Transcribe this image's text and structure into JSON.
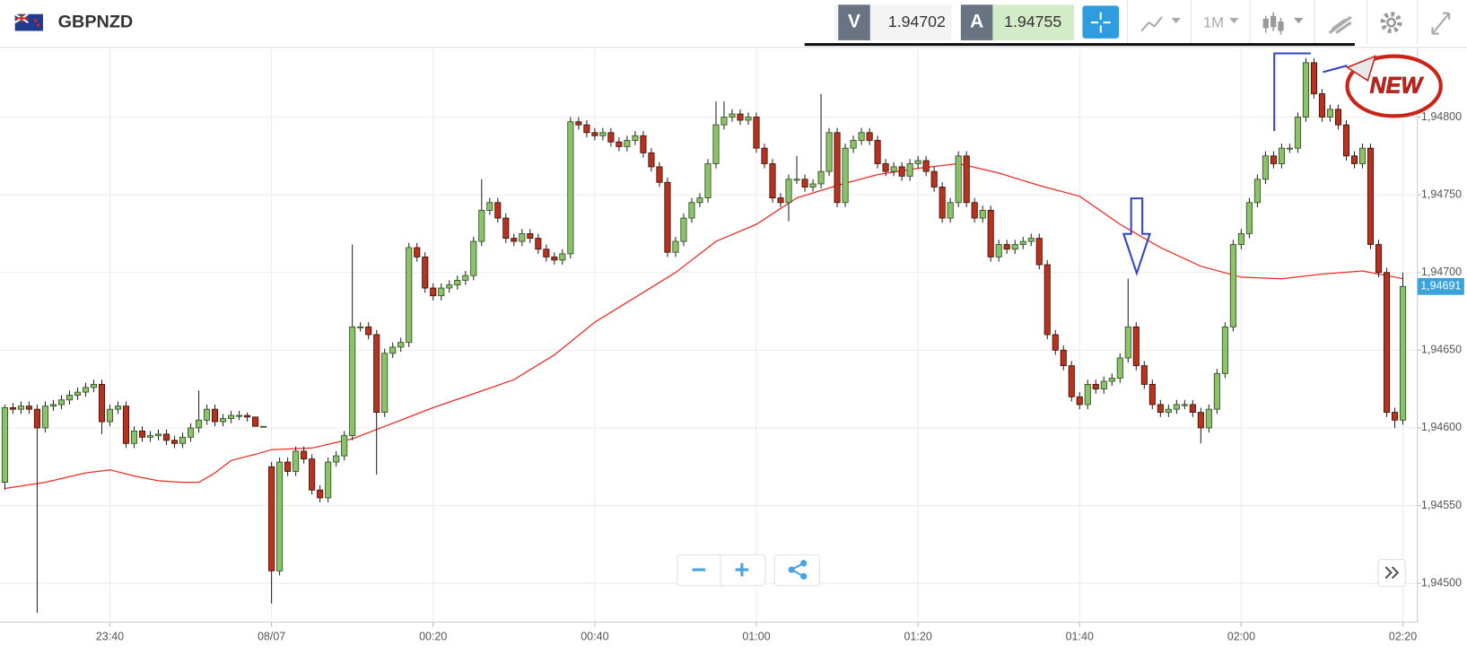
{
  "header": {
    "symbol": "GBPNZD",
    "bid_label": "V",
    "bid": 1.94702,
    "ask_label": "A",
    "ask": 1.94755,
    "timeframe": "1M"
  },
  "chart_data": {
    "type": "candlestick",
    "badge": "NEW",
    "up_color": "#8cc36a",
    "down_color": "#b8321e",
    "xlim": [
      -33.6,
      141.8
    ],
    "ylim": [
      1.94475,
      1.94844
    ],
    "xticks": [
      {
        "value": -20,
        "label": "23:40"
      },
      {
        "value": 0,
        "label": "08/07"
      },
      {
        "value": 20,
        "label": "00:20"
      },
      {
        "value": 40,
        "label": "00:40"
      },
      {
        "value": 60,
        "label": "01:00"
      },
      {
        "value": 80,
        "label": "01:20"
      },
      {
        "value": 100,
        "label": "01:40"
      },
      {
        "value": 120,
        "label": "02:00"
      },
      {
        "value": 140,
        "label": "02:20"
      }
    ],
    "yticks": [
      {
        "value": 1.945,
        "label": "1,94500"
      },
      {
        "value": 1.9455,
        "label": "1,94550"
      },
      {
        "value": 1.946,
        "label": "1,94600"
      },
      {
        "value": 1.9465,
        "label": "1,94650"
      },
      {
        "value": 1.947,
        "label": "1,94700"
      },
      {
        "value": 1.9475,
        "label": "1,94750"
      },
      {
        "value": 1.948,
        "label": "1,94800"
      }
    ],
    "grid": true,
    "last_price": {
      "value": 1.94691,
      "label": "1,94691"
    },
    "x": [
      -33,
      -32,
      -31,
      -30,
      -29,
      -28,
      -27,
      -26,
      -25,
      -24,
      -23,
      -22,
      -21,
      -20,
      -19,
      -18,
      -17,
      -16,
      -15,
      -14,
      -13,
      -12,
      -11,
      -10,
      -9,
      -8,
      -7,
      -6,
      -5,
      -4,
      -3,
      -2,
      -1,
      0,
      1,
      2,
      3,
      4,
      5,
      6,
      7,
      8,
      9,
      10,
      11,
      12,
      13,
      14,
      15,
      16,
      17,
      18,
      19,
      20,
      21,
      22,
      23,
      24,
      25,
      26,
      27,
      28,
      29,
      30,
      31,
      32,
      33,
      34,
      35,
      36,
      37,
      38,
      39,
      40,
      41,
      42,
      43,
      44,
      45,
      46,
      47,
      48,
      49,
      50,
      51,
      52,
      53,
      54,
      55,
      56,
      57,
      58,
      59,
      60,
      61,
      62,
      63,
      64,
      65,
      66,
      67,
      68,
      69,
      70,
      71,
      72,
      73,
      74,
      75,
      76,
      77,
      78,
      79,
      80,
      81,
      82,
      83,
      84,
      85,
      86,
      87,
      88,
      89,
      90,
      91,
      92,
      93,
      94,
      95,
      96,
      97,
      98,
      99,
      100,
      101,
      102,
      103,
      104,
      105,
      106,
      107,
      108,
      109,
      110,
      111,
      112,
      113,
      114,
      115,
      116,
      117,
      118,
      119,
      120,
      121,
      122,
      123,
      124,
      125,
      126,
      127,
      128,
      129,
      130,
      131,
      132,
      133,
      134,
      135,
      136,
      137,
      138,
      139,
      140
    ],
    "open": [
      1.94565,
      1.94613,
      1.94612,
      1.94614,
      1.94612,
      1.946,
      1.94614,
      1.94615,
      1.94618,
      1.94621,
      1.94623,
      1.94626,
      1.94628,
      1.94604,
      1.94612,
      1.94614,
      1.9459,
      1.94598,
      1.94594,
      1.94595,
      1.94596,
      1.94592,
      1.9459,
      1.94594,
      1.946,
      1.94605,
      1.94612,
      1.94604,
      1.94606,
      1.94608,
      1.94608,
      1.94607,
      1.94601,
      1.94575,
      1.94508,
      1.94578,
      1.94572,
      1.94585,
      1.9458,
      1.9456,
      1.94555,
      1.94578,
      1.94582,
      1.94595,
      1.94665,
      1.94665,
      1.9466,
      1.9461,
      1.94648,
      1.94652,
      1.94655,
      1.94716,
      1.9471,
      1.9469,
      1.94685,
      1.9469,
      1.94692,
      1.94695,
      1.94698,
      1.9472,
      1.9474,
      1.94745,
      1.94735,
      1.94722,
      1.9472,
      1.94725,
      1.94722,
      1.94715,
      1.9471,
      1.94708,
      1.94712,
      1.94797,
      1.94795,
      1.9479,
      1.94788,
      1.9479,
      1.94784,
      1.94781,
      1.94785,
      1.94788,
      1.94777,
      1.94768,
      1.94758,
      1.94713,
      1.9472,
      1.94735,
      1.94745,
      1.94748,
      1.9477,
      1.94795,
      1.948,
      1.94802,
      1.94798,
      1.948,
      1.9478,
      1.9477,
      1.94748,
      1.94745,
      1.9476,
      1.9476,
      1.94755,
      1.94757,
      1.94765,
      1.9479,
      1.94745,
      1.9478,
      1.94785,
      1.9479,
      1.94785,
      1.9477,
      1.94765,
      1.94768,
      1.94762,
      1.9477,
      1.94772,
      1.94765,
      1.94755,
      1.94735,
      1.94745,
      1.94775,
      1.94745,
      1.94735,
      1.9474,
      1.9471,
      1.94718,
      1.94715,
      1.94718,
      1.9472,
      1.94722,
      1.94705,
      1.9466,
      1.9465,
      1.9464,
      1.9462,
      1.94615,
      1.94628,
      1.94625,
      1.9463,
      1.94632,
      1.94645,
      1.94665,
      1.9464,
      1.94628,
      1.94615,
      1.9461,
      1.94612,
      1.94615,
      1.94615,
      1.9461,
      1.946,
      1.94612,
      1.94635,
      1.94665,
      1.94718,
      1.94725,
      1.94745,
      1.9476,
      1.94775,
      1.9477,
      1.9478,
      1.9478,
      1.948,
      1.94835,
      1.94815,
      1.948,
      1.94805,
      1.94795,
      1.94775,
      1.9477,
      1.9478,
      1.94718,
      1.947,
      1.9461,
      1.94605
    ],
    "high": [
      1.94615,
      1.94616,
      1.94617,
      1.94617,
      1.94615,
      1.94617,
      1.94618,
      1.94621,
      1.94624,
      1.94626,
      1.94629,
      1.94631,
      1.94631,
      1.94615,
      1.94617,
      1.94617,
      1.94601,
      1.94601,
      1.94598,
      1.94599,
      1.94599,
      1.94595,
      1.94597,
      1.94603,
      1.94624,
      1.94615,
      1.94615,
      1.94609,
      1.94611,
      1.94611,
      1.9461,
      1.94607,
      1.94601,
      1.94578,
      1.94581,
      1.94581,
      1.94588,
      1.94588,
      1.94583,
      1.94563,
      1.94581,
      1.94585,
      1.94598,
      1.94718,
      1.94668,
      1.94668,
      1.94663,
      1.94651,
      1.94655,
      1.94658,
      1.94719,
      1.94719,
      1.94713,
      1.94693,
      1.94693,
      1.94695,
      1.94698,
      1.94701,
      1.94723,
      1.9476,
      1.94748,
      1.94748,
      1.94738,
      1.94725,
      1.94728,
      1.94728,
      1.94725,
      1.94718,
      1.94713,
      1.94715,
      1.948,
      1.948,
      1.94798,
      1.94793,
      1.94793,
      1.94793,
      1.94787,
      1.94788,
      1.94791,
      1.94791,
      1.9478,
      1.94771,
      1.94761,
      1.94723,
      1.94738,
      1.94748,
      1.94751,
      1.94773,
      1.9481,
      1.9481,
      1.94805,
      1.94805,
      1.94803,
      1.94803,
      1.94783,
      1.94773,
      1.94751,
      1.94763,
      1.94775,
      1.94763,
      1.9476,
      1.94815,
      1.94793,
      1.94793,
      1.94783,
      1.94788,
      1.94793,
      1.94793,
      1.94788,
      1.94773,
      1.94771,
      1.94771,
      1.94773,
      1.94775,
      1.94775,
      1.94768,
      1.94758,
      1.94748,
      1.94778,
      1.94778,
      1.94748,
      1.94743,
      1.94743,
      1.94721,
      1.94721,
      1.94721,
      1.94723,
      1.94725,
      1.94725,
      1.94708,
      1.94663,
      1.94653,
      1.94643,
      1.94623,
      1.94631,
      1.94631,
      1.94633,
      1.94635,
      1.94648,
      1.94696,
      1.94668,
      1.94643,
      1.94631,
      1.94618,
      1.94615,
      1.94618,
      1.94618,
      1.94618,
      1.94613,
      1.94615,
      1.94638,
      1.94668,
      1.94721,
      1.94728,
      1.94748,
      1.94763,
      1.94778,
      1.94778,
      1.94783,
      1.94783,
      1.94803,
      1.94838,
      1.94838,
      1.94818,
      1.94808,
      1.94808,
      1.94798,
      1.94778,
      1.94783,
      1.94783,
      1.94721,
      1.94703,
      1.94613,
      1.947
    ],
    "low": [
      1.9456,
      1.94609,
      1.94609,
      1.94609,
      1.94481,
      1.94597,
      1.94611,
      1.94612,
      1.94615,
      1.94618,
      1.9462,
      1.94623,
      1.94596,
      1.94601,
      1.94609,
      1.94587,
      1.94587,
      1.94591,
      1.94591,
      1.94592,
      1.94589,
      1.94587,
      1.94587,
      1.94591,
      1.94597,
      1.94602,
      1.94601,
      1.94601,
      1.94603,
      1.94605,
      1.94604,
      1.94601,
      1.94601,
      1.94487,
      1.94505,
      1.94569,
      1.94569,
      1.94577,
      1.94557,
      1.94552,
      1.94552,
      1.94575,
      1.94579,
      1.94592,
      1.94662,
      1.94657,
      1.9457,
      1.94607,
      1.94645,
      1.94649,
      1.94652,
      1.94707,
      1.94687,
      1.94682,
      1.94682,
      1.94687,
      1.94689,
      1.94692,
      1.94695,
      1.94717,
      1.94737,
      1.94732,
      1.94719,
      1.94717,
      1.94717,
      1.94719,
      1.94712,
      1.94707,
      1.94705,
      1.94705,
      1.94709,
      1.94792,
      1.94787,
      1.94785,
      1.94785,
      1.94781,
      1.94778,
      1.94778,
      1.94782,
      1.94774,
      1.94765,
      1.94755,
      1.9471,
      1.9471,
      1.94717,
      1.94732,
      1.94742,
      1.94745,
      1.94767,
      1.94792,
      1.94797,
      1.94795,
      1.94795,
      1.94777,
      1.94767,
      1.94745,
      1.94742,
      1.94733,
      1.94757,
      1.94752,
      1.94752,
      1.94754,
      1.94762,
      1.94742,
      1.94742,
      1.94777,
      1.94782,
      1.94782,
      1.94767,
      1.94762,
      1.94762,
      1.94759,
      1.94759,
      1.94767,
      1.94762,
      1.94752,
      1.94732,
      1.94732,
      1.94742,
      1.94742,
      1.94732,
      1.94732,
      1.94707,
      1.94707,
      1.94712,
      1.94712,
      1.94715,
      1.94717,
      1.94702,
      1.94657,
      1.94647,
      1.94637,
      1.94617,
      1.94612,
      1.94612,
      1.94622,
      1.94622,
      1.94627,
      1.94629,
      1.94642,
      1.94637,
      1.94625,
      1.94612,
      1.94607,
      1.94607,
      1.94609,
      1.94612,
      1.94607,
      1.9459,
      1.94597,
      1.94609,
      1.94632,
      1.94662,
      1.94715,
      1.94722,
      1.94742,
      1.94757,
      1.94767,
      1.94767,
      1.94777,
      1.94777,
      1.94797,
      1.94812,
      1.94797,
      1.94797,
      1.94792,
      1.94772,
      1.94767,
      1.94767,
      1.94715,
      1.94697,
      1.94607,
      1.946,
      1.94602
    ],
    "close": [
      1.94613,
      1.94612,
      1.94614,
      1.94612,
      1.946,
      1.94614,
      1.94615,
      1.94618,
      1.94621,
      1.94623,
      1.94626,
      1.94628,
      1.94604,
      1.94612,
      1.94614,
      1.9459,
      1.94598,
      1.94594,
      1.94595,
      1.94596,
      1.94592,
      1.9459,
      1.94594,
      1.946,
      1.94605,
      1.94612,
      1.94604,
      1.94606,
      1.94608,
      1.94608,
      1.94607,
      1.94601,
      1.94601,
      1.94508,
      1.94578,
      1.94572,
      1.94585,
      1.9458,
      1.9456,
      1.94555,
      1.94578,
      1.94582,
      1.94595,
      1.94665,
      1.94665,
      1.9466,
      1.9461,
      1.94648,
      1.94652,
      1.94655,
      1.94716,
      1.9471,
      1.9469,
      1.94685,
      1.9469,
      1.94692,
      1.94695,
      1.94698,
      1.9472,
      1.9474,
      1.94745,
      1.94735,
      1.94722,
      1.9472,
      1.94725,
      1.94722,
      1.94715,
      1.9471,
      1.94708,
      1.94712,
      1.94797,
      1.94795,
      1.9479,
      1.94788,
      1.9479,
      1.94784,
      1.94781,
      1.94785,
      1.94788,
      1.94777,
      1.94768,
      1.94758,
      1.94713,
      1.9472,
      1.94735,
      1.94745,
      1.94748,
      1.9477,
      1.94795,
      1.948,
      1.94802,
      1.94798,
      1.948,
      1.9478,
      1.9477,
      1.94748,
      1.94745,
      1.9476,
      1.9476,
      1.94755,
      1.94757,
      1.94765,
      1.9479,
      1.94745,
      1.9478,
      1.94785,
      1.9479,
      1.94785,
      1.9477,
      1.94765,
      1.94768,
      1.94762,
      1.9477,
      1.94772,
      1.94765,
      1.94755,
      1.94735,
      1.94745,
      1.94775,
      1.94745,
      1.94735,
      1.9474,
      1.9471,
      1.94718,
      1.94715,
      1.94718,
      1.9472,
      1.94722,
      1.94705,
      1.9466,
      1.9465,
      1.9464,
      1.9462,
      1.94615,
      1.94628,
      1.94625,
      1.9463,
      1.94632,
      1.94645,
      1.94665,
      1.9464,
      1.94628,
      1.94615,
      1.9461,
      1.94612,
      1.94615,
      1.94615,
      1.9461,
      1.946,
      1.94612,
      1.94635,
      1.94665,
      1.94718,
      1.94725,
      1.94745,
      1.9476,
      1.94775,
      1.9477,
      1.9478,
      1.9478,
      1.948,
      1.94835,
      1.94815,
      1.948,
      1.94805,
      1.94795,
      1.94775,
      1.9477,
      1.9478,
      1.94718,
      1.947,
      1.9461,
      1.94605,
      1.94691
    ],
    "moving_average": {
      "color": "#ee2a24",
      "x": [
        -33,
        -28,
        -23,
        -20,
        -17,
        -14,
        -11,
        -9,
        -7,
        -5,
        -2,
        0,
        5,
        10,
        15,
        20,
        25,
        30,
        35,
        40,
        45,
        50,
        55,
        60,
        65,
        70,
        75,
        80,
        85,
        90,
        95,
        100,
        105,
        110,
        115,
        120,
        125,
        130,
        135,
        140
      ],
      "values": [
        1.94561,
        1.94565,
        1.94571,
        1.94573,
        1.94569,
        1.94566,
        1.94565,
        1.94565,
        1.94571,
        1.94579,
        1.94583,
        1.94586,
        1.94587,
        1.94593,
        1.94603,
        1.94613,
        1.94622,
        1.94631,
        1.94647,
        1.94668,
        1.94684,
        1.947,
        1.9472,
        1.94731,
        1.94748,
        1.94756,
        1.94763,
        1.94767,
        1.9477,
        1.94764,
        1.94756,
        1.94749,
        1.94731,
        1.94716,
        1.94704,
        1.94697,
        1.94696,
        1.94699,
        1.94701,
        1.94696
      ]
    }
  }
}
